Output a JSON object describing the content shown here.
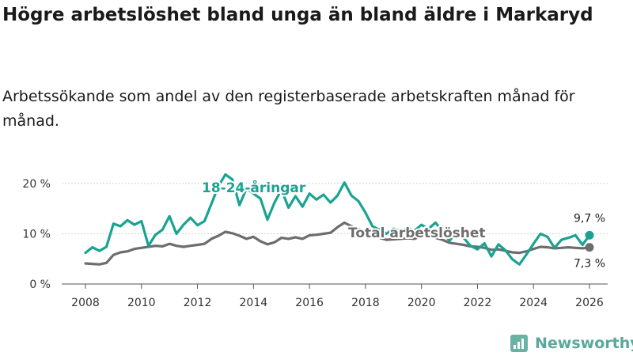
{
  "title": "Högre arbetslöshet bland unga än bland äldre i Markaryd",
  "subtitle": "Arbetssökande som andel av den registerbaserade arbetskraften månad för månad.",
  "brand": "Newsworthy",
  "colors": {
    "young": "#1aa391",
    "total": "#6d6d6d"
  },
  "chart_data": {
    "type": "line",
    "title": "Högre arbetslöshet bland unga än bland äldre i Markaryd",
    "xlabel": "",
    "ylabel": "",
    "xlim": [
      2007.6,
      2026.6
    ],
    "ylim": [
      0,
      20
    ],
    "y_ticks": [
      {
        "value": 0,
        "label": "0 %"
      },
      {
        "value": 10,
        "label": "10 %"
      },
      {
        "value": 20,
        "label": "20 %"
      }
    ],
    "x_ticks": [
      {
        "value": 2008,
        "label": "2008"
      },
      {
        "value": 2010,
        "label": "2010"
      },
      {
        "value": 2012,
        "label": "2012"
      },
      {
        "value": 2014,
        "label": "2014"
      },
      {
        "value": 2016,
        "label": "2016"
      },
      {
        "value": 2018,
        "label": "2018"
      },
      {
        "value": 2020,
        "label": "2020"
      },
      {
        "value": 2022,
        "label": "2022"
      },
      {
        "value": 2024,
        "label": "2024"
      },
      {
        "value": 2026,
        "label": "2026"
      }
    ],
    "series": [
      {
        "name": "18-24-åringar",
        "label": "18-24-åringar",
        "color": "#1aa391",
        "end_label": "9,7 %",
        "points": [
          [
            2008.0,
            6.2
          ],
          [
            2008.25,
            7.3
          ],
          [
            2008.5,
            6.6
          ],
          [
            2008.75,
            7.4
          ],
          [
            2009.0,
            12.0
          ],
          [
            2009.25,
            11.5
          ],
          [
            2009.5,
            12.7
          ],
          [
            2009.75,
            11.8
          ],
          [
            2010.0,
            12.5
          ],
          [
            2010.25,
            7.6
          ],
          [
            2010.5,
            9.8
          ],
          [
            2010.75,
            10.8
          ],
          [
            2011.0,
            13.5
          ],
          [
            2011.25,
            10.0
          ],
          [
            2011.5,
            11.8
          ],
          [
            2011.75,
            13.2
          ],
          [
            2012.0,
            11.7
          ],
          [
            2012.25,
            12.5
          ],
          [
            2012.5,
            16.0
          ],
          [
            2012.75,
            19.5
          ],
          [
            2013.0,
            21.8
          ],
          [
            2013.25,
            20.8
          ],
          [
            2013.5,
            15.7
          ],
          [
            2013.75,
            19.0
          ],
          [
            2014.0,
            18.0
          ],
          [
            2014.25,
            17.0
          ],
          [
            2014.5,
            12.8
          ],
          [
            2014.75,
            16.2
          ],
          [
            2015.0,
            18.8
          ],
          [
            2015.25,
            15.2
          ],
          [
            2015.5,
            17.5
          ],
          [
            2015.75,
            15.4
          ],
          [
            2016.0,
            18.0
          ],
          [
            2016.25,
            16.8
          ],
          [
            2016.5,
            17.8
          ],
          [
            2016.75,
            16.2
          ],
          [
            2017.0,
            17.6
          ],
          [
            2017.25,
            20.2
          ],
          [
            2017.5,
            17.6
          ],
          [
            2017.75,
            16.5
          ],
          [
            2018.0,
            14.2
          ],
          [
            2018.25,
            11.5
          ],
          [
            2018.5,
            10.8
          ],
          [
            2018.75,
            10.0
          ],
          [
            2019.0,
            11.0
          ],
          [
            2019.25,
            10.5
          ],
          [
            2019.5,
            11.2
          ],
          [
            2019.75,
            10.6
          ],
          [
            2020.0,
            11.8
          ],
          [
            2020.25,
            11.0
          ],
          [
            2020.5,
            12.2
          ],
          [
            2020.75,
            10.6
          ],
          [
            2021.0,
            8.6
          ],
          [
            2021.25,
            10.4
          ],
          [
            2021.5,
            9.2
          ],
          [
            2021.75,
            7.6
          ],
          [
            2022.0,
            6.9
          ],
          [
            2022.25,
            8.1
          ],
          [
            2022.5,
            5.5
          ],
          [
            2022.75,
            7.9
          ],
          [
            2023.0,
            6.7
          ],
          [
            2023.25,
            4.9
          ],
          [
            2023.5,
            3.9
          ],
          [
            2023.75,
            5.9
          ],
          [
            2024.0,
            8.0
          ],
          [
            2024.25,
            10.0
          ],
          [
            2024.5,
            9.4
          ],
          [
            2024.75,
            7.2
          ],
          [
            2025.0,
            8.8
          ],
          [
            2025.25,
            9.2
          ],
          [
            2025.5,
            9.7
          ],
          [
            2025.75,
            7.8
          ],
          [
            2026.0,
            9.7
          ]
        ]
      },
      {
        "name": "Total arbetslöshet",
        "label": "Total arbetslöshet",
        "color": "#6d6d6d",
        "end_label": "7,3 %",
        "points": [
          [
            2008.0,
            4.1
          ],
          [
            2008.25,
            4.0
          ],
          [
            2008.5,
            3.9
          ],
          [
            2008.75,
            4.2
          ],
          [
            2009.0,
            5.8
          ],
          [
            2009.25,
            6.3
          ],
          [
            2009.5,
            6.5
          ],
          [
            2009.75,
            7.0
          ],
          [
            2010.0,
            7.2
          ],
          [
            2010.25,
            7.4
          ],
          [
            2010.5,
            7.6
          ],
          [
            2010.75,
            7.5
          ],
          [
            2011.0,
            8.0
          ],
          [
            2011.25,
            7.6
          ],
          [
            2011.5,
            7.4
          ],
          [
            2011.75,
            7.6
          ],
          [
            2012.0,
            7.8
          ],
          [
            2012.25,
            8.0
          ],
          [
            2012.5,
            9.0
          ],
          [
            2012.75,
            9.6
          ],
          [
            2013.0,
            10.4
          ],
          [
            2013.25,
            10.1
          ],
          [
            2013.5,
            9.6
          ],
          [
            2013.75,
            9.0
          ],
          [
            2014.0,
            9.4
          ],
          [
            2014.25,
            8.5
          ],
          [
            2014.5,
            7.9
          ],
          [
            2014.75,
            8.3
          ],
          [
            2015.0,
            9.2
          ],
          [
            2015.25,
            9.0
          ],
          [
            2015.5,
            9.3
          ],
          [
            2015.75,
            9.0
          ],
          [
            2016.0,
            9.7
          ],
          [
            2016.25,
            9.8
          ],
          [
            2016.5,
            10.0
          ],
          [
            2016.75,
            10.2
          ],
          [
            2017.0,
            11.3
          ],
          [
            2017.25,
            12.2
          ],
          [
            2017.5,
            11.5
          ],
          [
            2017.75,
            11.0
          ],
          [
            2018.0,
            10.2
          ],
          [
            2018.25,
            9.6
          ],
          [
            2018.5,
            9.2
          ],
          [
            2018.75,
            8.8
          ],
          [
            2019.0,
            8.9
          ],
          [
            2019.25,
            9.0
          ],
          [
            2019.5,
            9.1
          ],
          [
            2019.75,
            9.0
          ],
          [
            2020.0,
            9.6
          ],
          [
            2020.25,
            9.4
          ],
          [
            2020.5,
            9.2
          ],
          [
            2020.75,
            8.8
          ],
          [
            2021.0,
            8.2
          ],
          [
            2021.25,
            8.0
          ],
          [
            2021.5,
            7.8
          ],
          [
            2021.75,
            7.5
          ],
          [
            2022.0,
            7.4
          ],
          [
            2022.25,
            7.2
          ],
          [
            2022.5,
            6.8
          ],
          [
            2022.75,
            6.9
          ],
          [
            2023.0,
            6.6
          ],
          [
            2023.25,
            6.3
          ],
          [
            2023.5,
            6.2
          ],
          [
            2023.75,
            6.5
          ],
          [
            2024.0,
            7.0
          ],
          [
            2024.25,
            7.4
          ],
          [
            2024.5,
            7.3
          ],
          [
            2024.75,
            7.1
          ],
          [
            2025.0,
            7.2
          ],
          [
            2025.25,
            7.3
          ],
          [
            2025.5,
            7.2
          ],
          [
            2025.75,
            7.1
          ],
          [
            2026.0,
            7.3
          ]
        ]
      }
    ]
  }
}
